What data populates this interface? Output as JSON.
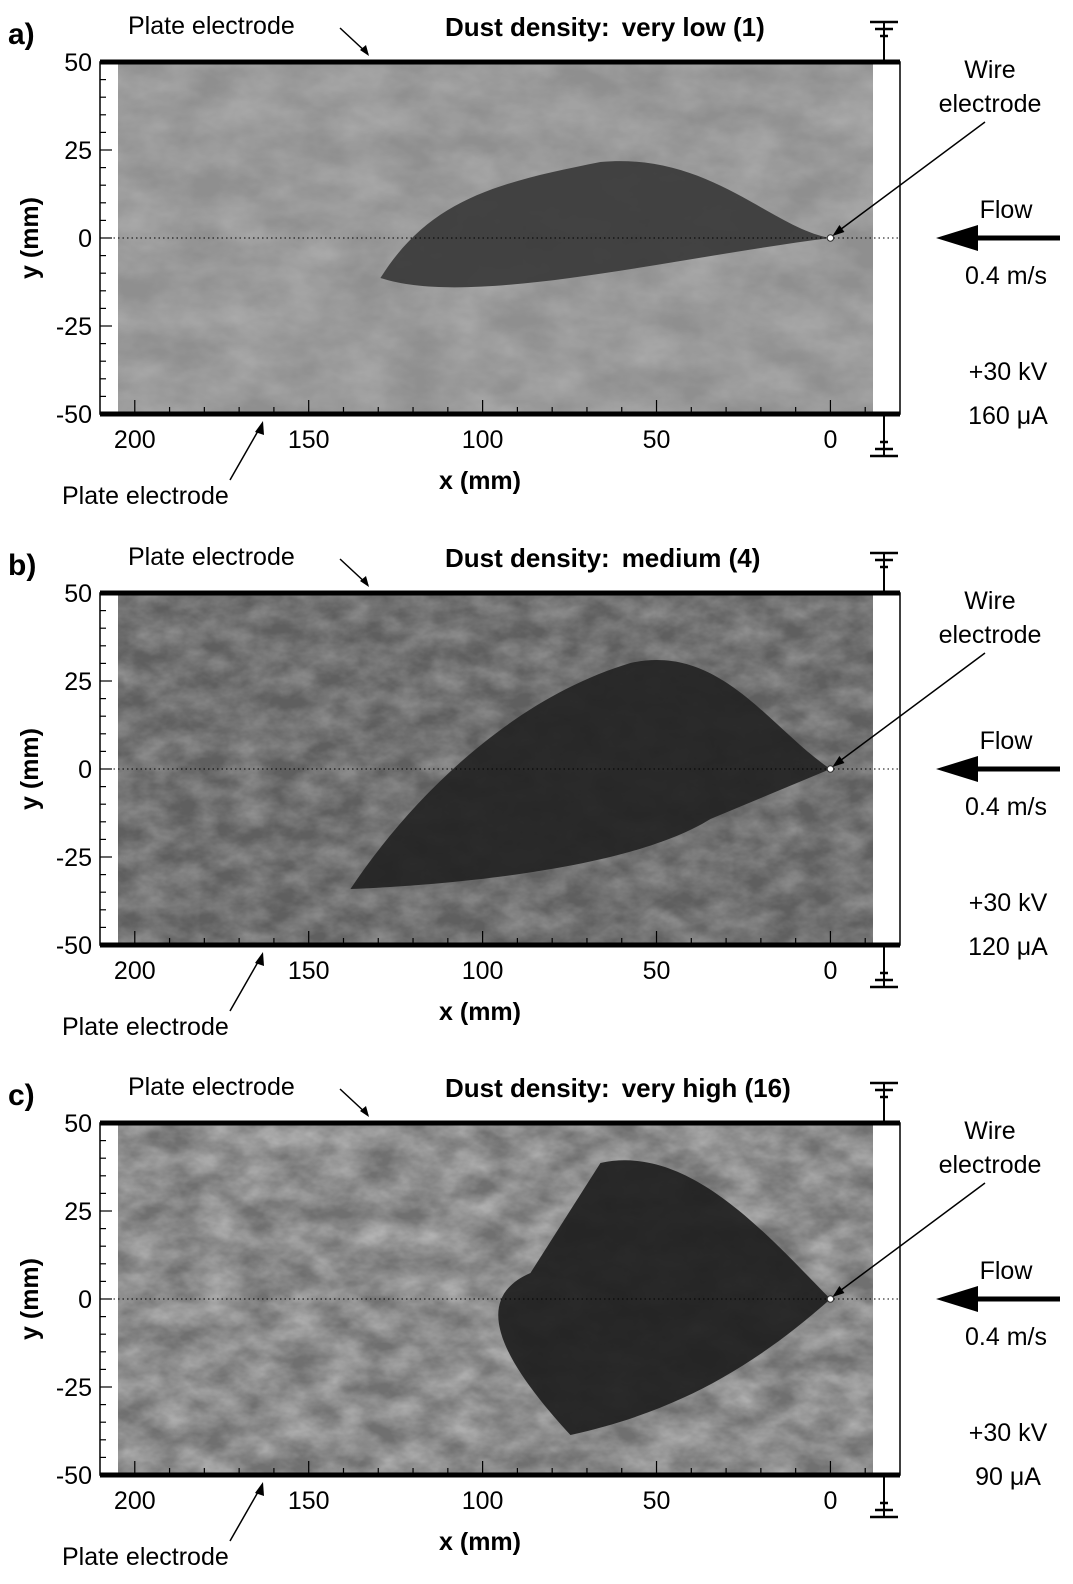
{
  "figure": {
    "panels": [
      {
        "letter": "a)",
        "dust_label": "Dust density:",
        "dust_value": "very low (1)",
        "voltage": "+30 kV",
        "current": "160 μA",
        "image_tone": "low"
      },
      {
        "letter": "b)",
        "dust_label": "Dust density:",
        "dust_value": "medium (4)",
        "voltage": "+30 kV",
        "current": "120 μA",
        "image_tone": "medium"
      },
      {
        "letter": "c)",
        "dust_label": "Dust density:",
        "dust_value": "very high (16)",
        "voltage": "+30 kV",
        "current": "90 μA",
        "image_tone": "high"
      }
    ],
    "plate_label": "Plate electrode",
    "wire_label_line1": "Wire",
    "wire_label_line2": "electrode",
    "flow_label": "Flow",
    "flow_speed": "0.4 m/s",
    "y_axis_label": "y (mm)",
    "x_axis_label": "x (mm)",
    "y_ticks": [
      50,
      25,
      0,
      -25,
      -50
    ],
    "x_ticks": [
      200,
      150,
      100,
      50,
      0
    ],
    "x_range": [
      210,
      -20
    ],
    "y_range": [
      -50,
      50
    ]
  }
}
